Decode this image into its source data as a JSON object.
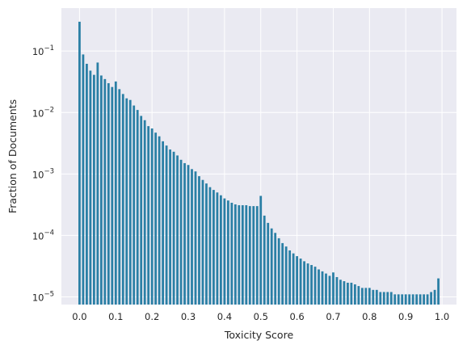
{
  "chart_data": {
    "type": "bar",
    "title": "",
    "xlabel": "Toxicity Score",
    "ylabel": "Fraction of Documents",
    "xlim": [
      -0.05,
      1.04
    ],
    "ylim": [
      7.5e-06,
      0.5
    ],
    "yscale": "log",
    "grid": true,
    "bar_color": "#2a7fa5",
    "background_color": "#eaeaf2",
    "grid_color": "#ffffff",
    "bin_width": 0.01,
    "x_ticks": [
      0.0,
      0.1,
      0.2,
      0.3,
      0.4,
      0.5,
      0.6,
      0.7,
      0.8,
      0.9,
      1.0
    ],
    "x_tick_labels": [
      "0.0",
      "0.1",
      "0.2",
      "0.3",
      "0.4",
      "0.5",
      "0.6",
      "0.7",
      "0.8",
      "0.9",
      "1.0"
    ],
    "y_ticks": [
      1e-05,
      0.0001,
      0.001,
      0.01,
      0.1
    ],
    "y_tick_labels": [
      {
        "base": "10",
        "exp": "−5"
      },
      {
        "base": "10",
        "exp": "−4"
      },
      {
        "base": "10",
        "exp": "−3"
      },
      {
        "base": "10",
        "exp": "−2"
      },
      {
        "base": "10",
        "exp": "−1"
      }
    ],
    "x": [
      0.0,
      0.01,
      0.02,
      0.03,
      0.04,
      0.05,
      0.06,
      0.07,
      0.08,
      0.09,
      0.1,
      0.11,
      0.12,
      0.13,
      0.14,
      0.15,
      0.16,
      0.17,
      0.18,
      0.19,
      0.2,
      0.21,
      0.22,
      0.23,
      0.24,
      0.25,
      0.26,
      0.27,
      0.28,
      0.29,
      0.3,
      0.31,
      0.32,
      0.33,
      0.34,
      0.35,
      0.36,
      0.37,
      0.38,
      0.39,
      0.4,
      0.41,
      0.42,
      0.43,
      0.44,
      0.45,
      0.46,
      0.47,
      0.48,
      0.49,
      0.5,
      0.51,
      0.52,
      0.53,
      0.54,
      0.55,
      0.56,
      0.57,
      0.58,
      0.59,
      0.6,
      0.61,
      0.62,
      0.63,
      0.64,
      0.65,
      0.66,
      0.67,
      0.68,
      0.69,
      0.7,
      0.71,
      0.72,
      0.73,
      0.74,
      0.75,
      0.76,
      0.77,
      0.78,
      0.79,
      0.8,
      0.81,
      0.82,
      0.83,
      0.84,
      0.85,
      0.86,
      0.87,
      0.88,
      0.89,
      0.9,
      0.91,
      0.92,
      0.93,
      0.94,
      0.95,
      0.96,
      0.97,
      0.98,
      0.99
    ],
    "values": [
      0.3,
      0.088,
      0.062,
      0.048,
      0.041,
      0.065,
      0.04,
      0.035,
      0.03,
      0.026,
      0.032,
      0.024,
      0.02,
      0.017,
      0.016,
      0.013,
      0.011,
      0.0088,
      0.0075,
      0.006,
      0.0055,
      0.0047,
      0.0041,
      0.0034,
      0.0029,
      0.0025,
      0.0023,
      0.002,
      0.0017,
      0.0015,
      0.0014,
      0.0012,
      0.0011,
      0.00092,
      0.0008,
      0.0007,
      0.00061,
      0.00055,
      0.0005,
      0.00045,
      0.0004,
      0.00037,
      0.00034,
      0.00032,
      0.00031,
      0.00031,
      0.00031,
      0.0003,
      0.0003,
      0.0003,
      0.00044,
      0.00021,
      0.00016,
      0.00013,
      0.00011,
      9e-05,
      7.5e-05,
      6.6e-05,
      5.7e-05,
      5.1e-05,
      4.6e-05,
      4.2e-05,
      3.8e-05,
      3.5e-05,
      3.3e-05,
      3.1e-05,
      2.8e-05,
      2.6e-05,
      2.4e-05,
      2.2e-05,
      2.5e-05,
      2.1e-05,
      1.9e-05,
      1.8e-05,
      1.7e-05,
      1.7e-05,
      1.6e-05,
      1.5e-05,
      1.4e-05,
      1.4e-05,
      1.4e-05,
      1.3e-05,
      1.3e-05,
      1.2e-05,
      1.2e-05,
      1.2e-05,
      1.2e-05,
      1.1e-05,
      1.1e-05,
      1.1e-05,
      1.1e-05,
      1.1e-05,
      1.1e-05,
      1.1e-05,
      1.1e-05,
      1.1e-05,
      1.1e-05,
      1.2e-05,
      1.3e-05,
      2e-05
    ]
  }
}
